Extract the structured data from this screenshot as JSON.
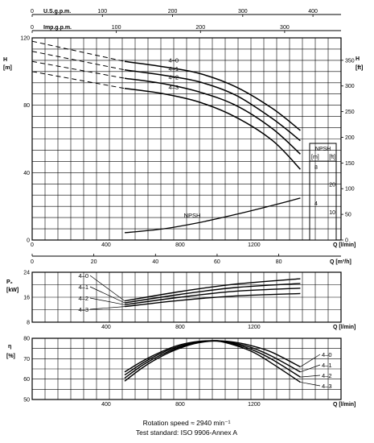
{
  "chart_data": {
    "type": "line",
    "top_axes": {
      "usgpm": {
        "label": "U.S.g.p.m.",
        "ticks": [
          "0",
          "100",
          "200",
          "300",
          "400"
        ],
        "lim": [
          0,
          440
        ]
      },
      "impgpm": {
        "label": "Imp.g.p.m.",
        "ticks": [
          "0",
          "100",
          "200",
          "300"
        ],
        "lim": [
          0,
          367
        ]
      }
    },
    "head_chart": {
      "ylabel_left": [
        "H",
        "[m]"
      ],
      "ylabel_right": [
        "H",
        "[ft]"
      ],
      "xlabel": "Q [l/min]",
      "xlim": [
        0,
        1670
      ],
      "ylim": [
        0,
        120
      ],
      "y_ticks": [
        "0",
        "40",
        "80",
        "120"
      ],
      "y_ticks_ft": [
        "0",
        "50",
        "100",
        "150",
        "200",
        "250",
        "300",
        "350"
      ],
      "x_ticks": [
        "0",
        "400",
        "800",
        "1200"
      ],
      "grid": true,
      "series": [
        {
          "name": "4–0",
          "x": [
            0,
            500,
            700,
            900,
            1100,
            1300,
            1450
          ],
          "y": [
            118,
            106,
            103,
            99,
            91,
            78,
            65
          ]
        },
        {
          "name": "4–1",
          "x": [
            0,
            500,
            700,
            900,
            1100,
            1300,
            1450
          ],
          "y": [
            112,
            101,
            98,
            94,
            86,
            72,
            59
          ]
        },
        {
          "name": "4–2",
          "x": [
            0,
            500,
            700,
            900,
            1100,
            1300,
            1450
          ],
          "y": [
            106,
            96,
            93,
            88,
            80,
            66,
            51
          ]
        },
        {
          "name": "4–3",
          "x": [
            0,
            500,
            700,
            900,
            1100,
            1300,
            1450
          ],
          "y": [
            100,
            90,
            87,
            82,
            73,
            59,
            42
          ]
        }
      ],
      "npsh": {
        "name": "NPSH",
        "box_title": "NPSH",
        "units": [
          "[m]",
          "[ft]"
        ],
        "ticks_m": [
          "4",
          "8"
        ],
        "ticks_ft": [
          "10",
          "20"
        ],
        "lim_m": [
          0,
          12.2
        ],
        "x": [
          500,
          700,
          900,
          1100,
          1300,
          1450
        ],
        "y": [
          0.8,
          1.2,
          1.9,
          2.8,
          3.8,
          4.6
        ]
      }
    },
    "flow_axis_m3h": {
      "label": "Q [m³/h]",
      "ticks": [
        "0",
        "20",
        "40",
        "60",
        "80"
      ],
      "lim": [
        0,
        100.2
      ]
    },
    "power_chart": {
      "ylabel": [
        "P₂",
        "[kW]"
      ],
      "xlabel": "Q [l/min]",
      "xlim": [
        0,
        1670
      ],
      "ylim": [
        8,
        24
      ],
      "y_ticks": [
        "8",
        "16",
        "24"
      ],
      "x_ticks": [
        "400",
        "800",
        "1200"
      ],
      "grid": true,
      "series": [
        {
          "name": "4–0",
          "x": [
            500,
            800,
            1100,
            1450
          ],
          "y": [
            14.8,
            17.8,
            20.2,
            21.9
          ]
        },
        {
          "name": "4–1",
          "x": [
            500,
            800,
            1100,
            1450
          ],
          "y": [
            14.2,
            16.9,
            19.1,
            20.4
          ]
        },
        {
          "name": "4–2",
          "x": [
            500,
            800,
            1100,
            1450
          ],
          "y": [
            13.6,
            16.0,
            17.9,
            18.9
          ]
        },
        {
          "name": "4–3",
          "x": [
            500,
            800,
            1100,
            1450
          ],
          "y": [
            13.0,
            15.0,
            16.4,
            17.2
          ]
        }
      ]
    },
    "eff_chart": {
      "ylabel": [
        "η",
        "[%]"
      ],
      "xlabel": "Q [l/min]",
      "xlim": [
        0,
        1670
      ],
      "ylim": [
        50,
        80
      ],
      "y_ticks": [
        "50",
        "60",
        "70",
        "80"
      ],
      "x_ticks": [
        "400",
        "800",
        "1200"
      ],
      "grid": true,
      "series": [
        {
          "name": "4–0",
          "x": [
            500,
            600,
            700,
            800,
            900,
            1000,
            1100,
            1200,
            1300,
            1450
          ],
          "y": [
            63.5,
            69,
            73.5,
            76.8,
            78.5,
            78.8,
            78,
            76,
            73,
            66
          ]
        },
        {
          "name": "4–1",
          "x": [
            500,
            600,
            700,
            800,
            900,
            1000,
            1100,
            1200,
            1300,
            1450
          ],
          "y": [
            62,
            68,
            72.8,
            76.2,
            78.2,
            78.8,
            77.5,
            75,
            71,
            63.5
          ]
        },
        {
          "name": "4–2",
          "x": [
            500,
            600,
            700,
            800,
            900,
            1000,
            1100,
            1200,
            1300,
            1450
          ],
          "y": [
            60.5,
            67,
            72,
            75.7,
            78,
            78.7,
            77,
            74,
            69.5,
            61
          ]
        },
        {
          "name": "4–3",
          "x": [
            500,
            600,
            700,
            800,
            900,
            1000,
            1100,
            1200,
            1300,
            1450
          ],
          "y": [
            59,
            65.8,
            71.2,
            75.2,
            77.8,
            78.6,
            76.5,
            73,
            67.5,
            58.5
          ]
        }
      ]
    }
  },
  "footer": {
    "line1": "Rotation speed ≈ 2940 min⁻¹",
    "line2": "Test standard: ISO 9906-Annex A"
  }
}
